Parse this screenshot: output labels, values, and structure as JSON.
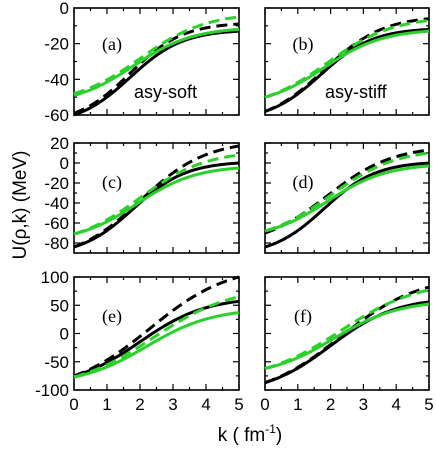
{
  "figure": {
    "ylabel": "U(ρ,k) (MeV)",
    "xlabel_main": "k ( fm",
    "xlabel_sup": "-1",
    "xlabel_close": ")"
  },
  "colors": {
    "black": "#000000",
    "green": "#2ad12a"
  },
  "chart_data": [
    {
      "type": "line",
      "panel": "(a)",
      "annotation": "asy-soft",
      "x_range": [
        0,
        5
      ],
      "ylim": [
        -60,
        0
      ],
      "yticks": [
        0,
        -20,
        -40,
        -60
      ],
      "xticks": [],
      "series": [
        {
          "color": "black",
          "style": "solid",
          "y0": -60,
          "y5": -13,
          "k0": 1.7,
          "w": 0.8
        },
        {
          "color": "black",
          "style": "dashed",
          "y0": -59,
          "y5": -9,
          "k0": 1.7,
          "w": 0.8
        },
        {
          "color": "green",
          "style": "solid",
          "y0": -49,
          "y5": -12,
          "k0": 1.8,
          "w": 0.9
        },
        {
          "color": "green",
          "style": "dashed",
          "y0": -48,
          "y5": -5,
          "k0": 2.0,
          "w": 1.0
        }
      ]
    },
    {
      "type": "line",
      "panel": "(b)",
      "annotation": "asy-stiff",
      "x_range": [
        0,
        5
      ],
      "ylim": [
        -60,
        0
      ],
      "yticks": [],
      "xticks": [],
      "series": [
        {
          "color": "black",
          "style": "solid",
          "y0": -58,
          "y5": -12,
          "k0": 1.7,
          "w": 0.8
        },
        {
          "color": "black",
          "style": "dashed",
          "y0": -58,
          "y5": -6,
          "k0": 1.8,
          "w": 0.9
        },
        {
          "color": "green",
          "style": "solid",
          "y0": -50,
          "y5": -13,
          "k0": 1.8,
          "w": 0.9
        },
        {
          "color": "green",
          "style": "dashed",
          "y0": -50,
          "y5": -7,
          "k0": 1.9,
          "w": 1.0
        }
      ]
    },
    {
      "type": "line",
      "panel": "(c)",
      "x_range": [
        0,
        5
      ],
      "ylim": [
        -90,
        20
      ],
      "yticks": [
        20,
        0,
        -20,
        -40,
        -60,
        -80
      ],
      "xticks": [],
      "series": [
        {
          "color": "black",
          "style": "solid",
          "y0": -84,
          "y5": 0,
          "k0": 1.8,
          "w": 0.8
        },
        {
          "color": "black",
          "style": "dashed",
          "y0": -84,
          "y5": 17,
          "k0": 2.0,
          "w": 1.0
        },
        {
          "color": "green",
          "style": "solid",
          "y0": -71,
          "y5": -5,
          "k0": 1.9,
          "w": 0.9
        },
        {
          "color": "green",
          "style": "dashed",
          "y0": -71,
          "y5": 8,
          "k0": 2.0,
          "w": 1.0
        }
      ]
    },
    {
      "type": "line",
      "panel": "(d)",
      "x_range": [
        0,
        5
      ],
      "ylim": [
        -90,
        20
      ],
      "yticks": [],
      "xticks": [],
      "series": [
        {
          "color": "black",
          "style": "solid",
          "y0": -84,
          "y5": 0,
          "k0": 1.8,
          "w": 0.8
        },
        {
          "color": "black",
          "style": "dashed",
          "y0": -70,
          "y5": 13,
          "k0": 1.9,
          "w": 1.0
        },
        {
          "color": "green",
          "style": "solid",
          "y0": -68,
          "y5": -3,
          "k0": 1.9,
          "w": 0.9
        },
        {
          "color": "green",
          "style": "dashed",
          "y0": -68,
          "y5": 10,
          "k0": 2.0,
          "w": 1.0
        }
      ]
    },
    {
      "type": "line",
      "panel": "(e)",
      "x_range": [
        0,
        5
      ],
      "ylim": [
        -100,
        100
      ],
      "yticks": [
        100,
        50,
        0,
        -50,
        -100
      ],
      "xticks": [
        0,
        1,
        2,
        3,
        4,
        5
      ],
      "series": [
        {
          "color": "black",
          "style": "solid",
          "y0": -75,
          "y5": 57,
          "k0": 2.0,
          "w": 1.0
        },
        {
          "color": "black",
          "style": "dashed",
          "y0": -75,
          "y5": 100,
          "k0": 2.3,
          "w": 1.2
        },
        {
          "color": "green",
          "style": "solid",
          "y0": -77,
          "y5": 37,
          "k0": 2.2,
          "w": 1.0
        },
        {
          "color": "green",
          "style": "dashed",
          "y0": -77,
          "y5": 65,
          "k0": 2.4,
          "w": 1.2
        }
      ]
    },
    {
      "type": "line",
      "panel": "(f)",
      "x_range": [
        0,
        5
      ],
      "ylim": [
        -100,
        100
      ],
      "yticks": [],
      "xticks": [
        0,
        1,
        2,
        3,
        4,
        5
      ],
      "series": [
        {
          "color": "black",
          "style": "solid",
          "y0": -87,
          "y5": 56,
          "k0": 2.0,
          "w": 1.0
        },
        {
          "color": "black",
          "style": "dashed",
          "y0": -87,
          "y5": 82,
          "k0": 2.3,
          "w": 1.2
        },
        {
          "color": "green",
          "style": "solid",
          "y0": -62,
          "y5": 52,
          "k0": 2.1,
          "w": 1.0
        },
        {
          "color": "green",
          "style": "dashed",
          "y0": -62,
          "y5": 77,
          "k0": 2.3,
          "w": 1.2
        }
      ]
    }
  ]
}
